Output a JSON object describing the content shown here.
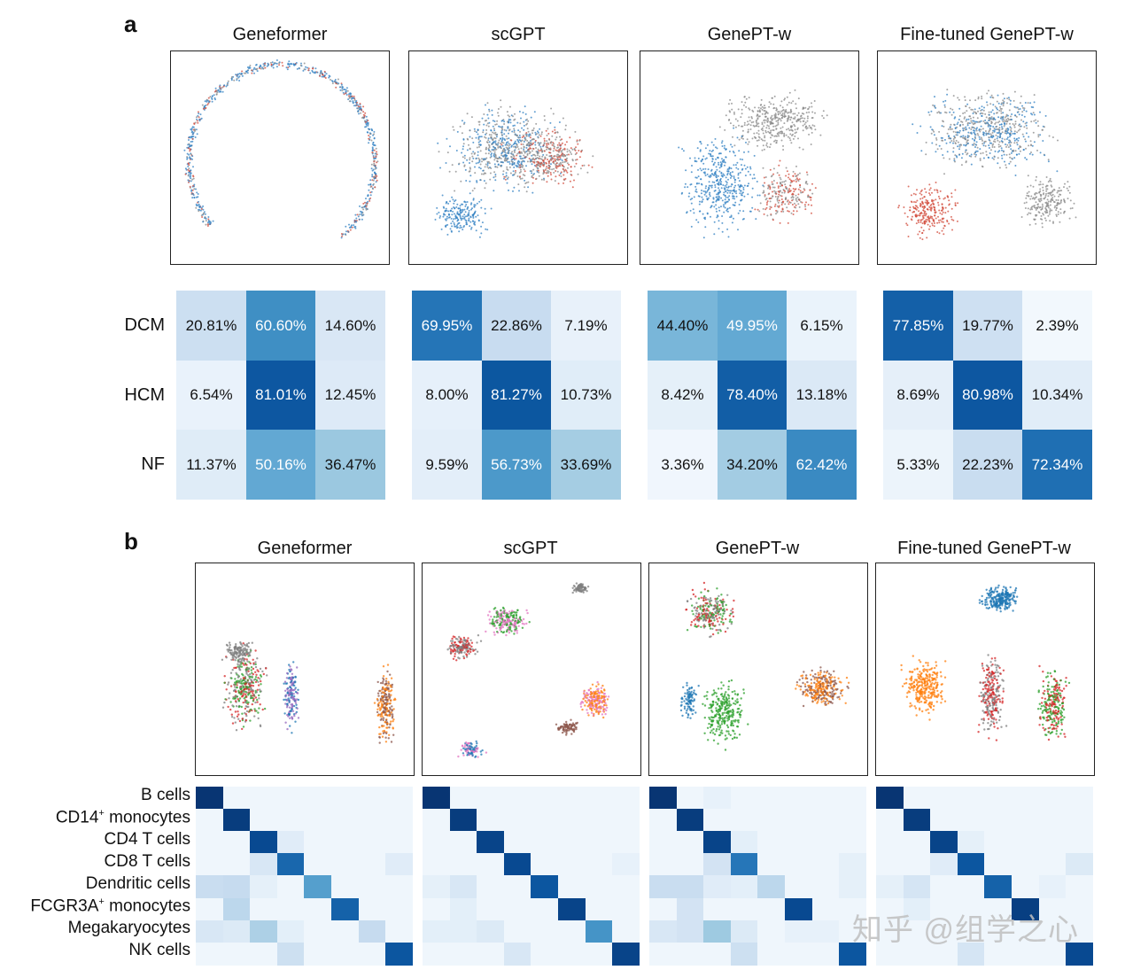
{
  "panel_a": {
    "letter": "a",
    "models": [
      "Geneformer",
      "scGPT",
      "GenePT-w",
      "Fine-tuned GenePT-w"
    ],
    "row_labels": [
      "DCM",
      "HCM",
      "NF"
    ],
    "confusion": [
      [
        [
          "20.81%",
          "60.60%",
          "14.60%"
        ],
        [
          "6.54%",
          "81.01%",
          "12.45%"
        ],
        [
          "11.37%",
          "50.16%",
          "36.47%"
        ]
      ],
      [
        [
          "69.95%",
          "22.86%",
          "7.19%"
        ],
        [
          "8.00%",
          "81.27%",
          "10.73%"
        ],
        [
          "9.59%",
          "56.73%",
          "33.69%"
        ]
      ],
      [
        [
          "44.40%",
          "49.95%",
          "6.15%"
        ],
        [
          "8.42%",
          "78.40%",
          "13.18%"
        ],
        [
          "3.36%",
          "34.20%",
          "62.42%"
        ]
      ],
      [
        [
          "77.85%",
          "19.77%",
          "2.39%"
        ],
        [
          "8.69%",
          "80.98%",
          "10.34%"
        ],
        [
          "5.33%",
          "22.23%",
          "72.34%"
        ]
      ]
    ],
    "legend_colors": {
      "DCM": "#2f7fc1",
      "HCM": "#888888",
      "NF": "#d24a3a"
    }
  },
  "panel_b": {
    "letter": "b",
    "models": [
      "Geneformer",
      "scGPT",
      "GenePT-w",
      "Fine-tuned GenePT-w"
    ],
    "cell_types": [
      "B cells",
      "CD14",
      "CD4 T cells",
      "CD8 T cells",
      "Dendritic cells",
      "FCGR3A",
      "Megakaryocytes",
      "NK cells"
    ],
    "cell_type_suffix": {
      "CD14": " monocytes",
      "FCGR3A": " monocytes"
    },
    "superscript": "+",
    "cluster_colors": [
      "#1f77b4",
      "#ff7f0e",
      "#2ca02c",
      "#d62728",
      "#9467bd",
      "#8c564b",
      "#e377c2",
      "#7f7f7f"
    ],
    "heatmaps": [
      [
        [
          0.98,
          0,
          0,
          0,
          0,
          0,
          0,
          0
        ],
        [
          0,
          0.95,
          0,
          0,
          0,
          0,
          0,
          0
        ],
        [
          0,
          0,
          0.9,
          0.08,
          0,
          0,
          0,
          0
        ],
        [
          0,
          0,
          0.12,
          0.78,
          0,
          0,
          0,
          0.08
        ],
        [
          0.2,
          0.22,
          0.05,
          0,
          0.55,
          0,
          0,
          0
        ],
        [
          0,
          0.25,
          0,
          0,
          0,
          0.8,
          0,
          0
        ],
        [
          0.12,
          0.1,
          0.3,
          0.06,
          0,
          0,
          0.22,
          0
        ],
        [
          0,
          0,
          0,
          0.18,
          0,
          0,
          0,
          0.85
        ]
      ],
      [
        [
          0.98,
          0,
          0,
          0,
          0,
          0,
          0,
          0
        ],
        [
          0,
          0.95,
          0,
          0,
          0,
          0,
          0,
          0
        ],
        [
          0,
          0,
          0.92,
          0,
          0,
          0,
          0,
          0
        ],
        [
          0,
          0,
          0,
          0.9,
          0,
          0,
          0,
          0.04
        ],
        [
          0.05,
          0.12,
          0,
          0,
          0.85,
          0,
          0,
          0
        ],
        [
          0,
          0.06,
          0,
          0,
          0,
          0.92,
          0,
          0
        ],
        [
          0.06,
          0.06,
          0.1,
          0,
          0,
          0,
          0.6,
          0
        ],
        [
          0,
          0,
          0,
          0.12,
          0,
          0,
          0,
          0.92
        ]
      ],
      [
        [
          0.98,
          0,
          0.04,
          0,
          0,
          0,
          0,
          0
        ],
        [
          0,
          0.95,
          0,
          0,
          0,
          0,
          0,
          0
        ],
        [
          0,
          0,
          0.92,
          0.06,
          0,
          0,
          0,
          0
        ],
        [
          0,
          0,
          0.15,
          0.72,
          0,
          0,
          0,
          0.05
        ],
        [
          0.2,
          0.2,
          0.08,
          0.06,
          0.25,
          0,
          0,
          0.05
        ],
        [
          0,
          0.15,
          0,
          0,
          0,
          0.9,
          0,
          0
        ],
        [
          0.12,
          0.15,
          0.35,
          0.1,
          0,
          0.04,
          0.04,
          0
        ],
        [
          0,
          0,
          0,
          0.18,
          0,
          0,
          0,
          0.85
        ]
      ],
      [
        [
          0.98,
          0,
          0,
          0,
          0,
          0,
          0,
          0
        ],
        [
          0,
          0.95,
          0,
          0,
          0,
          0,
          0,
          0
        ],
        [
          0,
          0,
          0.92,
          0.05,
          0,
          0,
          0,
          0
        ],
        [
          0,
          0,
          0.08,
          0.85,
          0,
          0,
          0,
          0.1
        ],
        [
          0.05,
          0.14,
          0,
          0,
          0.8,
          0,
          0.04,
          0
        ],
        [
          0,
          0.06,
          0,
          0,
          0,
          0.94,
          0,
          0
        ],
        [
          0,
          0,
          0,
          0,
          0,
          0,
          0,
          0
        ],
        [
          0,
          0,
          0,
          0.14,
          0,
          0,
          0,
          0.9
        ]
      ]
    ]
  },
  "watermark": "知乎 @组学之心"
}
